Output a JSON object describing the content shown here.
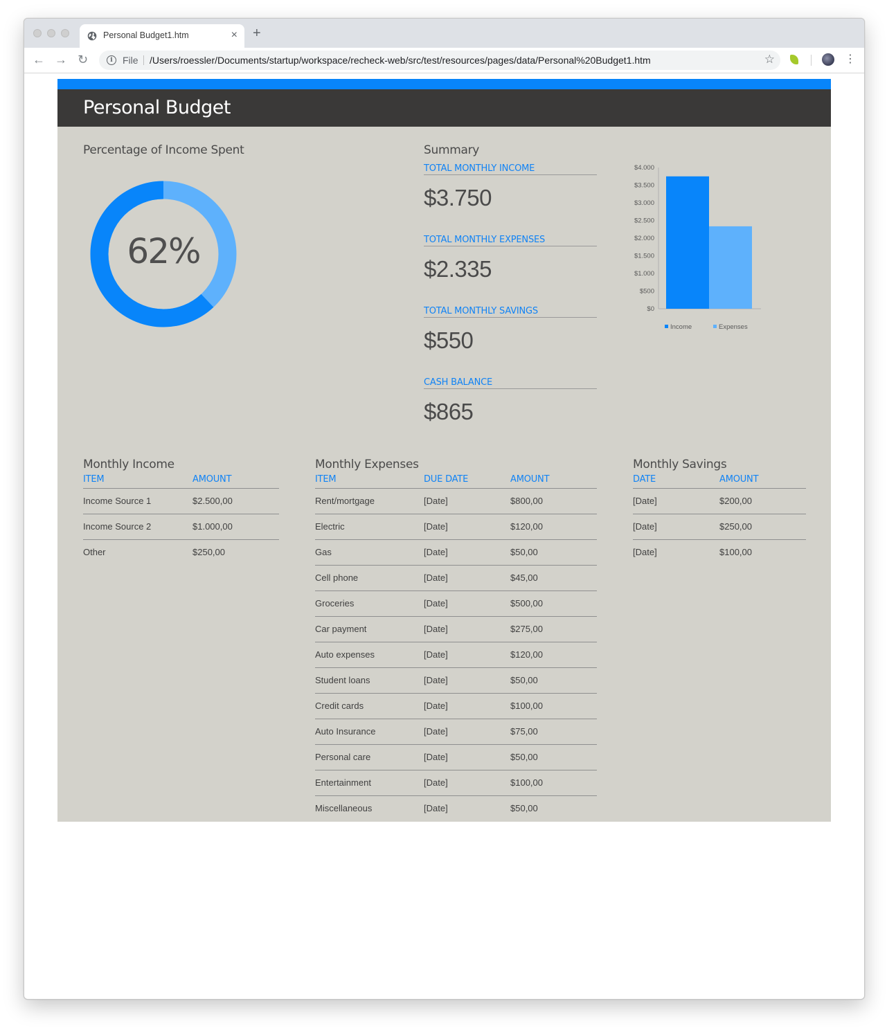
{
  "browser": {
    "tab_title": "Personal Budget1.htm",
    "close_glyph": "×",
    "new_tab_glyph": "+",
    "back_glyph": "←",
    "forward_glyph": "→",
    "reload_glyph": "↻",
    "info_glyph": "i",
    "url_scheme": "File",
    "url": "/Users/roessler/Documents/startup/workspace/recheck-web/src/test/resources/pages/data/Personal%20Budget1.htm",
    "star_glyph": "☆",
    "menu_glyph": "⋮"
  },
  "page": {
    "title": "Personal Budget",
    "accent_color": "#0885fa",
    "light_accent_color": "#5eb1fc",
    "background_color": "#d3d2cb"
  },
  "percentage": {
    "heading": "Percentage of Income Spent",
    "value": 62,
    "label": "62%"
  },
  "summary": {
    "heading": "Summary",
    "items": [
      {
        "label": "TOTAL MONTHLY INCOME",
        "value": "$3.750"
      },
      {
        "label": "TOTAL MONTHLY EXPENSES",
        "value": "$2.335"
      },
      {
        "label": "TOTAL MONTHLY SAVINGS",
        "value": "$550"
      },
      {
        "label": "CASH BALANCE",
        "value": "$865"
      }
    ]
  },
  "chart_data": {
    "type": "bar",
    "title": "",
    "xlabel": "",
    "ylabel": "",
    "categories": [
      ""
    ],
    "series": [
      {
        "name": "Income",
        "values": [
          3750
        ],
        "color": "#0885fa"
      },
      {
        "name": "Expenses",
        "values": [
          2335
        ],
        "color": "#5eb1fc"
      }
    ],
    "ylim": [
      0,
      4000
    ],
    "yticks": [
      0,
      500,
      1000,
      1500,
      2000,
      2500,
      3000,
      3500,
      4000
    ],
    "ytick_labels": [
      "$0",
      "$500",
      "$1.000",
      "$1.500",
      "$2.000",
      "$2.500",
      "$3.000",
      "$3.500",
      "$4.000"
    ],
    "grid": false,
    "legend": "bottom"
  },
  "income": {
    "heading": "Monthly Income",
    "columns": [
      "ITEM",
      "AMOUNT"
    ],
    "rows": [
      [
        "Income Source 1",
        "$2.500,00"
      ],
      [
        "Income Source 2",
        "$1.000,00"
      ],
      [
        "Other",
        "$250,00"
      ]
    ]
  },
  "expenses": {
    "heading": "Monthly Expenses",
    "columns": [
      "ITEM",
      "DUE DATE",
      "AMOUNT"
    ],
    "rows": [
      [
        "Rent/mortgage",
        "[Date]",
        "$800,00"
      ],
      [
        "Electric",
        "[Date]",
        "$120,00"
      ],
      [
        "Gas",
        "[Date]",
        "$50,00"
      ],
      [
        "Cell phone",
        "[Date]",
        "$45,00"
      ],
      [
        "Groceries",
        "[Date]",
        "$500,00"
      ],
      [
        "Car payment",
        "[Date]",
        "$275,00"
      ],
      [
        "Auto expenses",
        "[Date]",
        "$120,00"
      ],
      [
        "Student loans",
        "[Date]",
        "$50,00"
      ],
      [
        "Credit cards",
        "[Date]",
        "$100,00"
      ],
      [
        "Auto Insurance",
        "[Date]",
        "$75,00"
      ],
      [
        "Personal care",
        "[Date]",
        "$50,00"
      ],
      [
        "Entertainment",
        "[Date]",
        "$100,00"
      ],
      [
        "Miscellaneous",
        "[Date]",
        "$50,00"
      ]
    ]
  },
  "savings": {
    "heading": "Monthly Savings",
    "columns": [
      "DATE",
      "AMOUNT"
    ],
    "rows": [
      [
        "[Date]",
        "$200,00"
      ],
      [
        "[Date]",
        "$250,00"
      ],
      [
        "[Date]",
        "$100,00"
      ]
    ]
  }
}
